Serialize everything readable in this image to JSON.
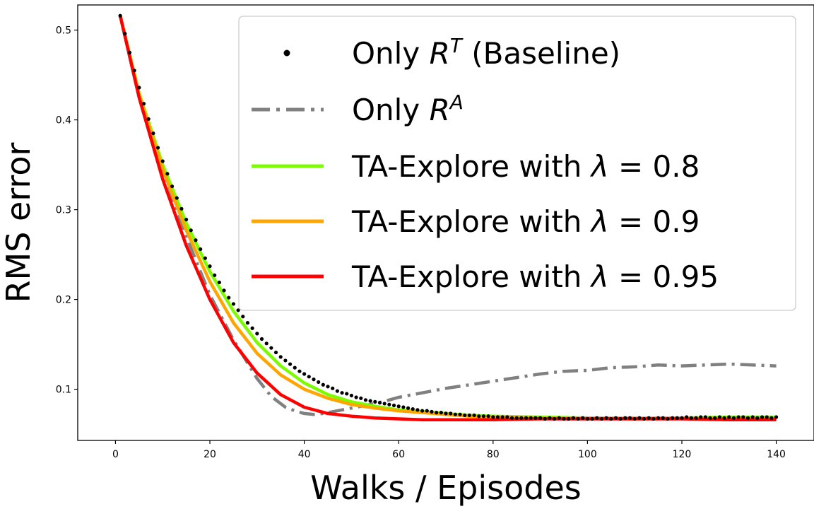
{
  "chart_data": {
    "type": "line",
    "xlabel": "Walks / Episodes",
    "ylabel": "RMS error",
    "xlim": [
      -8,
      148
    ],
    "ylim": [
      0.043,
      0.528
    ],
    "x_ticks": [
      0,
      20,
      40,
      60,
      80,
      100,
      120,
      140
    ],
    "y_ticks": [
      0.1,
      0.2,
      0.3,
      0.4,
      0.5
    ],
    "grid": false,
    "legend_position": "top-right",
    "series": [
      {
        "name": "Only R^T (Baseline)",
        "legend_parts": [
          "Only ",
          "R",
          "T",
          " (Baseline)"
        ],
        "style": "dots",
        "color": "#000000",
        "x": [
          1,
          2,
          3,
          4,
          5,
          6,
          7,
          8,
          9,
          10,
          11,
          12,
          13,
          14,
          15,
          16,
          17,
          18,
          19,
          20,
          21,
          22,
          23,
          24,
          25,
          26,
          27,
          28,
          29,
          30,
          31,
          32,
          33,
          34,
          35,
          36,
          37,
          38,
          39,
          40,
          41,
          42,
          43,
          44,
          45,
          46,
          47,
          48,
          49,
          50,
          51,
          52,
          53,
          54,
          55,
          56,
          57,
          58,
          59,
          60,
          61,
          62,
          63,
          64,
          65,
          66,
          67,
          68,
          69,
          70,
          71,
          72,
          73,
          74,
          75,
          76,
          77,
          78,
          79,
          80,
          81,
          82,
          83,
          84,
          85,
          86,
          87,
          88,
          89,
          90,
          91,
          92,
          93,
          94,
          95,
          96,
          97,
          98,
          99,
          100,
          101,
          102,
          103,
          104,
          105,
          106,
          107,
          108,
          109,
          110,
          111,
          112,
          113,
          114,
          115,
          116,
          117,
          118,
          119,
          120,
          121,
          122,
          123,
          124,
          125,
          126,
          127,
          128,
          129,
          130,
          131,
          132,
          133,
          134,
          135,
          136,
          137,
          138,
          139,
          140
        ],
        "y": [
          0.516,
          0.496,
          0.475,
          0.455,
          0.436,
          0.418,
          0.401,
          0.385,
          0.369,
          0.354,
          0.34,
          0.326,
          0.313,
          0.301,
          0.289,
          0.277,
          0.266,
          0.256,
          0.246,
          0.237,
          0.227,
          0.219,
          0.21,
          0.202,
          0.195,
          0.188,
          0.181,
          0.174,
          0.168,
          0.162,
          0.156,
          0.151,
          0.146,
          0.141,
          0.136,
          0.132,
          0.128,
          0.124,
          0.12,
          0.117,
          0.114,
          0.111,
          0.108,
          0.105,
          0.103,
          0.101,
          0.098,
          0.096,
          0.095,
          0.093,
          0.091,
          0.09,
          0.088,
          0.087,
          0.086,
          0.085,
          0.084,
          0.083,
          0.082,
          0.081,
          0.08,
          0.079,
          0.078,
          0.077,
          0.076,
          0.076,
          0.075,
          0.074,
          0.074,
          0.073,
          0.073,
          0.072,
          0.072,
          0.071,
          0.071,
          0.071,
          0.07,
          0.07,
          0.07,
          0.069,
          0.069,
          0.069,
          0.069,
          0.068,
          0.068,
          0.068,
          0.068,
          0.068,
          0.068,
          0.068,
          0.067,
          0.068,
          0.067,
          0.068,
          0.067,
          0.067,
          0.068,
          0.067,
          0.068,
          0.067,
          0.067,
          0.068,
          0.067,
          0.068,
          0.067,
          0.068,
          0.067,
          0.068,
          0.068,
          0.067,
          0.068,
          0.067,
          0.068,
          0.067,
          0.068,
          0.068,
          0.067,
          0.068,
          0.068,
          0.068,
          0.069,
          0.068,
          0.068,
          0.069,
          0.069,
          0.068,
          0.068,
          0.069,
          0.068,
          0.069,
          0.068,
          0.069,
          0.069,
          0.068,
          0.069,
          0.068,
          0.069,
          0.069,
          0.068,
          0.069
        ]
      },
      {
        "name": "Only R^A",
        "legend_parts": [
          "Only ",
          "R",
          "A",
          ""
        ],
        "style": "dashdot",
        "color": "#808080",
        "x": [
          1,
          5,
          10,
          15,
          20,
          25,
          30,
          33,
          36,
          38,
          40,
          42,
          44,
          46,
          48,
          50,
          52,
          55,
          58,
          60,
          63,
          66,
          70,
          75,
          80,
          85,
          90,
          95,
          100,
          105,
          110,
          115,
          120,
          125,
          130,
          135,
          140
        ],
        "y": [
          0.516,
          0.43,
          0.345,
          0.27,
          0.205,
          0.155,
          0.112,
          0.092,
          0.08,
          0.076,
          0.073,
          0.072,
          0.073,
          0.075,
          0.077,
          0.079,
          0.081,
          0.084,
          0.088,
          0.091,
          0.094,
          0.097,
          0.101,
          0.105,
          0.109,
          0.113,
          0.117,
          0.12,
          0.121,
          0.124,
          0.125,
          0.127,
          0.126,
          0.127,
          0.128,
          0.127,
          0.126
        ]
      },
      {
        "name": "TA-Explore with λ = 0.8",
        "legend_parts": [
          "TA-Explore with ",
          "λ",
          " = 0.8",
          ""
        ],
        "style": "solid",
        "color": "#7cfc00",
        "x": [
          1,
          5,
          10,
          15,
          20,
          25,
          30,
          35,
          40,
          45,
          50,
          55,
          60,
          65,
          70,
          75,
          80,
          90,
          100,
          110,
          120,
          130,
          140
        ],
        "y": [
          0.516,
          0.43,
          0.35,
          0.285,
          0.231,
          0.187,
          0.152,
          0.126,
          0.107,
          0.094,
          0.086,
          0.081,
          0.077,
          0.075,
          0.073,
          0.071,
          0.07,
          0.069,
          0.068,
          0.068,
          0.068,
          0.069,
          0.069
        ]
      },
      {
        "name": "TA-Explore with λ = 0.9",
        "legend_parts": [
          "TA-Explore with ",
          "λ",
          " = 0.9",
          ""
        ],
        "style": "solid",
        "color": "#ffa500",
        "x": [
          1,
          5,
          10,
          15,
          20,
          25,
          30,
          35,
          40,
          45,
          50,
          55,
          60,
          65,
          70,
          75,
          80,
          90,
          100,
          110,
          120,
          130,
          140
        ],
        "y": [
          0.516,
          0.428,
          0.345,
          0.277,
          0.22,
          0.174,
          0.14,
          0.116,
          0.1,
          0.09,
          0.083,
          0.079,
          0.076,
          0.074,
          0.072,
          0.07,
          0.069,
          0.068,
          0.068,
          0.067,
          0.068,
          0.068,
          0.068
        ]
      },
      {
        "name": "TA-Explore with λ = 0.95",
        "legend_parts": [
          "TA-Explore with ",
          "λ",
          " = 0.95",
          ""
        ],
        "style": "solid",
        "color": "#ff0000",
        "x": [
          1,
          5,
          10,
          15,
          20,
          25,
          30,
          35,
          40,
          45,
          50,
          55,
          60,
          65,
          70,
          75,
          80,
          90,
          100,
          110,
          120,
          130,
          140
        ],
        "y": [
          0.516,
          0.425,
          0.334,
          0.26,
          0.2,
          0.152,
          0.118,
          0.094,
          0.08,
          0.073,
          0.07,
          0.068,
          0.067,
          0.066,
          0.066,
          0.066,
          0.066,
          0.067,
          0.067,
          0.067,
          0.067,
          0.066,
          0.066
        ]
      }
    ]
  }
}
